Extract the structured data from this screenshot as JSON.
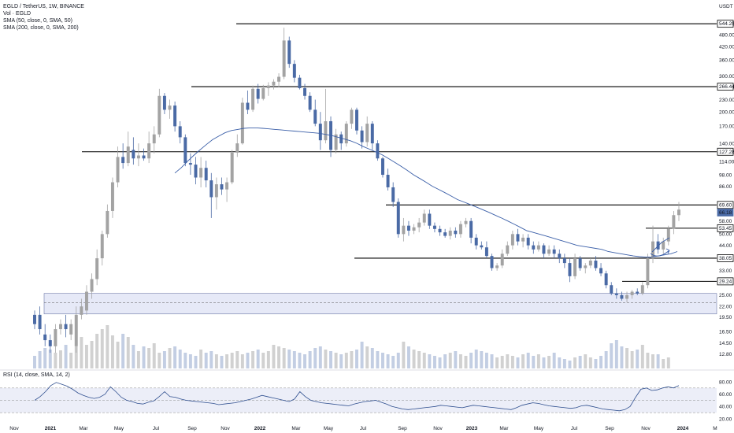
{
  "header": {
    "symbol_line": "EGLD / TetherUS, 1W, BINANCE",
    "vol_line": "Vol · EGLD",
    "sma50_line": "SMA (50, close, 0, SMA, 50)",
    "sma200_line": "SMA (200, close, 0, SMA, 200)"
  },
  "currency": "USDT",
  "rsi_label": "RSI (14, close, SMA, 14, 2)",
  "colors": {
    "up": "#a3a3a3",
    "down": "#4a6aa5",
    "sma": "#3b5fa8",
    "volume": "#b8c5de",
    "volume_grey": "#c9c9c9",
    "zone": "#e6e9f7",
    "rsi_band": "#eceef8"
  },
  "chart_data": {
    "type": "candlestick",
    "title": "EGLD / TetherUS, 1W, BINANCE",
    "scale": "log",
    "ylim": [
      10.5,
      640
    ],
    "y_ticks": [
      "544.25",
      "480.00",
      "420.00",
      "360.00",
      "300.00",
      "266.44",
      "230.00",
      "200.00",
      "170.00",
      "140.00",
      "127.28",
      "114.00",
      "98.00",
      "86.00",
      "69.60",
      "58.00",
      "53.45",
      "50.00",
      "44.00",
      "38.05",
      "33.00",
      "29.24",
      "25.00",
      "22.00",
      "19.50",
      "16.50",
      "14.50",
      "12.80"
    ],
    "price_badges": [
      {
        "label": "544.25",
        "value": 544.25,
        "style": "outline"
      },
      {
        "label": "266.44",
        "value": 266.44,
        "style": "outline"
      },
      {
        "label": "127.28",
        "value": 127.28,
        "style": "outline"
      },
      {
        "label": "69.60",
        "value": 69.6,
        "style": "outline"
      },
      {
        "label": "66.18",
        "value": 66.18,
        "style": "filled"
      },
      {
        "label": "53.45",
        "value": 53.45,
        "style": "outline"
      },
      {
        "label": "38.05",
        "value": 38.05,
        "style": "outline"
      },
      {
        "label": "29.24",
        "value": 29.24,
        "style": "outline"
      }
    ],
    "x_labels": [
      "Nov",
      "2021",
      "Mar",
      "May",
      "Jul",
      "Sep",
      "Nov",
      "2022",
      "Mar",
      "May",
      "Jul",
      "Sep",
      "Nov",
      "2023",
      "Mar",
      "May",
      "Jul",
      "Sep",
      "Nov",
      "2024",
      "M"
    ],
    "bold_x_labels": [
      "2021",
      "2022",
      "2023",
      "2024"
    ],
    "support_resistance_lines": [
      544.25,
      266.44,
      127.28,
      69.6,
      53.45,
      38.05,
      29.24
    ],
    "support_zone": [
      20.2,
      25.5
    ],
    "dashed_line": 23.0,
    "candles_ohlc": [
      [
        20,
        21,
        17,
        18
      ],
      [
        20,
        22,
        16,
        17
      ],
      [
        16,
        18,
        14,
        15
      ],
      [
        15,
        16,
        13,
        14
      ],
      [
        14,
        18,
        13,
        17
      ],
      [
        17,
        19,
        16,
        18
      ],
      [
        18,
        20,
        15.5,
        17
      ],
      [
        16,
        19,
        15,
        18
      ],
      [
        14,
        22,
        13,
        20
      ],
      [
        20,
        24,
        19,
        22
      ],
      [
        21,
        28,
        20,
        26
      ],
      [
        26,
        32,
        24,
        30
      ],
      [
        30,
        42,
        28,
        38
      ],
      [
        38,
        52,
        35,
        50
      ],
      [
        50,
        70,
        48,
        65
      ],
      [
        65,
        95,
        60,
        90
      ],
      [
        90,
        135,
        85,
        120
      ],
      [
        120,
        140,
        105,
        112
      ],
      [
        112,
        160,
        108,
        135
      ],
      [
        130,
        150,
        110,
        118
      ],
      [
        118,
        140,
        108,
        122
      ],
      [
        122,
        132,
        115,
        118
      ],
      [
        118,
        160,
        112,
        140
      ],
      [
        140,
        170,
        125,
        155
      ],
      [
        155,
        260,
        150,
        240
      ],
      [
        240,
        248,
        195,
        205
      ],
      [
        205,
        230,
        185,
        215
      ],
      [
        215,
        225,
        160,
        170
      ],
      [
        170,
        180,
        140,
        150
      ],
      [
        150,
        155,
        108,
        112
      ],
      [
        112,
        125,
        98,
        110
      ],
      [
        110,
        120,
        88,
        95
      ],
      [
        95,
        120,
        85,
        106
      ],
      [
        106,
        115,
        85,
        92
      ],
      [
        92,
        100,
        60,
        76
      ],
      [
        76,
        95,
        66,
        88
      ],
      [
        88,
        95,
        78,
        83
      ],
      [
        83,
        95,
        72,
        90
      ],
      [
        90,
        130,
        88,
        126
      ],
      [
        126,
        155,
        120,
        140
      ],
      [
        140,
        235,
        138,
        222
      ],
      [
        222,
        255,
        195,
        205
      ],
      [
        205,
        270,
        200,
        260
      ],
      [
        260,
        275,
        220,
        232
      ],
      [
        232,
        272,
        228,
        262
      ],
      [
        262,
        280,
        240,
        270
      ],
      [
        270,
        290,
        258,
        282
      ],
      [
        282,
        310,
        265,
        298
      ],
      [
        298,
        520,
        290,
        450
      ],
      [
        450,
        470,
        330,
        345
      ],
      [
        345,
        360,
        280,
        295
      ],
      [
        295,
        305,
        258,
        262
      ],
      [
        262,
        275,
        230,
        240
      ],
      [
        240,
        250,
        200,
        205
      ],
      [
        205,
        230,
        170,
        175
      ],
      [
        175,
        200,
        130,
        145
      ],
      [
        145,
        260,
        140,
        180
      ],
      [
        180,
        190,
        120,
        130
      ],
      [
        130,
        165,
        125,
        155
      ],
      [
        155,
        160,
        130,
        140
      ],
      [
        140,
        180,
        135,
        175
      ],
      [
        175,
        210,
        165,
        205
      ],
      [
        205,
        210,
        155,
        162
      ],
      [
        162,
        170,
        132,
        142
      ],
      [
        142,
        190,
        135,
        175
      ],
      [
        175,
        180,
        130,
        140
      ],
      [
        140,
        145,
        115,
        118
      ],
      [
        118,
        120,
        95,
        98
      ],
      [
        98,
        105,
        82,
        85
      ],
      [
        85,
        90,
        68,
        72
      ],
      [
        72,
        75,
        48,
        50
      ],
      [
        50,
        60,
        46,
        55
      ],
      [
        55,
        58,
        49,
        52
      ],
      [
        52,
        56,
        50,
        54
      ],
      [
        54,
        60,
        51,
        57
      ],
      [
        57,
        66,
        55,
        63
      ],
      [
        63,
        66,
        53,
        55
      ],
      [
        55,
        57,
        51,
        53
      ],
      [
        53,
        55,
        49,
        51
      ],
      [
        51,
        53,
        48,
        49
      ],
      [
        49,
        54,
        47,
        52
      ],
      [
        52,
        54,
        48,
        50
      ],
      [
        50,
        58,
        48,
        56
      ],
      [
        56,
        60,
        54,
        58
      ],
      [
        58,
        60,
        45,
        48
      ],
      [
        48,
        50,
        42,
        44
      ],
      [
        44,
        46,
        42,
        43
      ],
      [
        43,
        46,
        38,
        39
      ],
      [
        39,
        40,
        33,
        34
      ],
      [
        34,
        36,
        33,
        35
      ],
      [
        35,
        42,
        34,
        40
      ],
      [
        40,
        46,
        39,
        44
      ],
      [
        44,
        52,
        42,
        50
      ],
      [
        50,
        53,
        44,
        46
      ],
      [
        46,
        50,
        43,
        48
      ],
      [
        48,
        50,
        42,
        44
      ],
      [
        44,
        46,
        40,
        42
      ],
      [
        42,
        46,
        41,
        44
      ],
      [
        44,
        45,
        38,
        40
      ],
      [
        40,
        44,
        39,
        42
      ],
      [
        42,
        44,
        38,
        40
      ],
      [
        40,
        42,
        36,
        38
      ],
      [
        38,
        40,
        34,
        36
      ],
      [
        36,
        38,
        29,
        31
      ],
      [
        31,
        40,
        30,
        38
      ],
      [
        38,
        39,
        33,
        34
      ],
      [
        34,
        36,
        32,
        35
      ],
      [
        35,
        38,
        34,
        37
      ],
      [
        37,
        39,
        33,
        34
      ],
      [
        34,
        36,
        31,
        32
      ],
      [
        32,
        33,
        27,
        28
      ],
      [
        28,
        29,
        25,
        25.5
      ],
      [
        25.5,
        27,
        24,
        25
      ],
      [
        25,
        26,
        23.5,
        24
      ],
      [
        24,
        26,
        23,
        25
      ],
      [
        25,
        26.5,
        24,
        26
      ],
      [
        26,
        27,
        25,
        25.5
      ],
      [
        25.5,
        29,
        25,
        28
      ],
      [
        28,
        40,
        27,
        38
      ],
      [
        38,
        55,
        36,
        46
      ],
      [
        46,
        50,
        40,
        42
      ],
      [
        42,
        48,
        40,
        46
      ],
      [
        46,
        55,
        44,
        53
      ],
      [
        53,
        65,
        50,
        62
      ],
      [
        62,
        72,
        58,
        66
      ]
    ],
    "sma50_series": [
      100,
      106,
      114,
      122,
      130,
      138,
      146,
      152,
      158,
      162,
      164,
      166,
      167,
      167,
      166,
      165,
      164,
      163,
      162,
      161,
      160,
      159,
      158,
      157,
      155,
      153,
      150,
      147,
      144,
      140,
      135,
      131,
      127,
      123,
      118,
      113,
      108,
      103,
      98,
      94,
      90,
      86,
      83,
      80,
      77,
      74,
      72,
      70,
      68,
      66,
      64,
      62,
      60,
      58,
      56,
      54,
      52,
      51,
      50,
      49,
      48,
      47,
      46,
      45,
      44,
      43.5,
      43,
      42.5,
      42,
      41,
      40.5,
      40,
      39.5,
      39,
      38.7,
      38.5,
      38.6,
      39,
      39.5,
      40,
      41
    ],
    "volume": [
      16,
      22,
      26,
      24,
      20,
      23,
      30,
      20,
      28,
      40,
      30,
      35,
      44,
      50,
      55,
      42,
      34,
      44,
      40,
      30,
      22,
      28,
      26,
      32,
      20,
      22,
      26,
      28,
      24,
      20,
      18,
      16,
      24,
      20,
      22,
      18,
      16,
      18,
      20,
      22,
      18,
      20,
      22,
      24,
      20,
      22,
      30,
      28,
      26,
      24,
      22,
      20,
      18,
      22,
      26,
      28,
      24,
      22,
      20,
      18,
      20,
      22,
      24,
      34,
      28,
      26,
      22,
      20,
      18,
      16,
      20,
      34,
      28,
      24,
      22,
      20,
      18,
      16,
      14,
      18,
      20,
      22,
      18,
      16,
      20,
      24,
      22,
      20,
      18,
      14,
      16,
      18,
      16,
      14,
      18,
      20,
      16,
      18,
      14,
      16,
      20,
      14,
      12,
      10,
      14,
      16,
      18,
      14,
      12,
      16,
      22,
      32,
      36,
      28,
      26,
      22,
      24,
      30,
      20,
      18,
      18,
      12,
      14
    ],
    "rsi": [
      50,
      56,
      64,
      74,
      79,
      76,
      73,
      68,
      62,
      58,
      55,
      53,
      55,
      60,
      72,
      64,
      55,
      50,
      48,
      45,
      44,
      47,
      49,
      56,
      64,
      56,
      55,
      52,
      50,
      49,
      48,
      47,
      46,
      45,
      43,
      44,
      45,
      46,
      48,
      50,
      52,
      55,
      58,
      56,
      54,
      52,
      50,
      48,
      52,
      64,
      56,
      50,
      48,
      46,
      45,
      44,
      43,
      42,
      41,
      44,
      46,
      48,
      49,
      50,
      47,
      44,
      40,
      38,
      36,
      35,
      36,
      37,
      38,
      39,
      40,
      42,
      41,
      40,
      39,
      38,
      40,
      42,
      41,
      40,
      39,
      38,
      37,
      36,
      35,
      38,
      42,
      44,
      46,
      45,
      43,
      41,
      40,
      39,
      38,
      37,
      38,
      41,
      42,
      40,
      38,
      36,
      35,
      34,
      33,
      35,
      40,
      55,
      68,
      70,
      66,
      67,
      70,
      72,
      70,
      74
    ],
    "rsi_bands": [
      30,
      50,
      70
    ],
    "rsi_ticks": [
      "80.00",
      "60.00",
      "40.00",
      "20.00"
    ]
  }
}
